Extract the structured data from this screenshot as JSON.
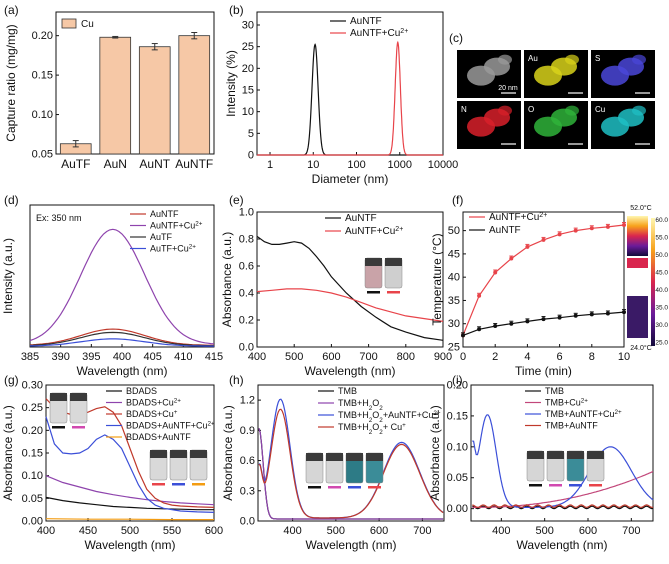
{
  "figure": {
    "chart_data": [
      {
        "panel": "(a)",
        "type": "bar",
        "title": "",
        "xlabel": "",
        "ylabel": "Capture ratio (mg/mg)",
        "categories": [
          "AuTF",
          "AuN",
          "AuNT",
          "AuNTF"
        ],
        "series": [
          {
            "name": "Cu",
            "values": [
              0.063,
              0.198,
              0.186,
              0.2
            ],
            "errors": [
              0.004,
              0.001,
              0.004,
              0.004
            ]
          }
        ],
        "ylim": [
          0.05,
          0.23
        ],
        "yticks": [
          "0.05",
          "0.10",
          "0.15",
          "0.20"
        ],
        "colors": {
          "bar": "#f6c8a6",
          "edge": "#333333"
        }
      },
      {
        "panel": "(b)",
        "type": "line",
        "title": "",
        "xlabel": "Diameter (nm)",
        "ylabel": "Intensity (%)",
        "xscale": "log",
        "xlim": [
          0.5,
          10000
        ],
        "ylim": [
          0,
          33
        ],
        "xticks": [
          "1",
          "10",
          "100",
          "1000",
          "10000"
        ],
        "yticks": [
          "0",
          "5",
          "10",
          "15",
          "20",
          "25",
          "30"
        ],
        "series": [
          {
            "name": "AuNTF",
            "color": "#111111",
            "peak_center": 11,
            "peak_height": 25.5,
            "log_width": 0.07
          },
          {
            "name": "AuNTF+Cu2+",
            "color": "#e8444a",
            "peak_center": 900,
            "peak_height": 26.0,
            "log_width": 0.06
          }
        ]
      },
      {
        "panel": "(c)",
        "type": "image-grid",
        "tiles": [
          {
            "label": "",
            "scale": "20 nm",
            "color": "#9a9a9a"
          },
          {
            "label": "Au",
            "color": "#d8d21a"
          },
          {
            "label": "S",
            "color": "#4a46d8"
          },
          {
            "label": "N",
            "color": "#d8202a"
          },
          {
            "label": "O",
            "color": "#2fb33a"
          },
          {
            "label": "Cu",
            "color": "#1fbfc4"
          }
        ]
      },
      {
        "panel": "(d)",
        "type": "line",
        "annotation": "Ex: 350 nm",
        "xlabel": "Wavelength (nm)",
        "ylabel": "Intensity (a.u.)",
        "xlim": [
          385,
          415
        ],
        "ylim": [
          0,
          175
        ],
        "xticks": [
          "385",
          "390",
          "395",
          "400",
          "405",
          "410",
          "415"
        ],
        "series": [
          {
            "name": "AuNTF",
            "color": "#c0392b",
            "peak": 22,
            "base": 2
          },
          {
            "name": "AuNTF+Cu2+",
            "color": "#8e44ad",
            "peak": 145,
            "base": 3
          },
          {
            "name": "AuTF",
            "color": "#333333",
            "peak": 18,
            "base": 1.5
          },
          {
            "name": "AuTF+Cu2+",
            "color": "#3b4fd8",
            "peak": 10,
            "base": 1
          }
        ],
        "peak_wavelength": 398.5
      },
      {
        "panel": "(e)",
        "type": "line",
        "xlabel": "Wavelength (nm)",
        "ylabel": "Absorbance (a.u.)",
        "xlim": [
          400,
          900
        ],
        "ylim": [
          0,
          1.0
        ],
        "xticks": [
          "400",
          "500",
          "600",
          "700",
          "800",
          "900"
        ],
        "yticks": [
          "0.0",
          "0.2",
          "0.4",
          "0.6",
          "0.8",
          "1.0"
        ],
        "series": [
          {
            "name": "AuNTF",
            "color": "#111111",
            "x": [
              400,
              420,
              440,
              460,
              480,
              500,
              520,
              540,
              560,
              580,
              600,
              640,
              680,
              720,
              760,
              800,
              850,
              900
            ],
            "y": [
              0.82,
              0.78,
              0.76,
              0.76,
              0.77,
              0.78,
              0.77,
              0.73,
              0.67,
              0.6,
              0.52,
              0.4,
              0.3,
              0.22,
              0.15,
              0.11,
              0.07,
              0.05
            ]
          },
          {
            "name": "AuNTF+Cu2+",
            "color": "#e8444a",
            "x": [
              400,
              440,
              480,
              520,
              560,
              600,
              640,
              680,
              720,
              760,
              800,
              850,
              900
            ],
            "y": [
              0.41,
              0.42,
              0.43,
              0.43,
              0.42,
              0.4,
              0.37,
              0.33,
              0.29,
              0.26,
              0.23,
              0.21,
              0.19
            ]
          }
        ]
      },
      {
        "panel": "(f)",
        "type": "line",
        "xlabel": "Time (min)",
        "ylabel": "Temperature (°C)",
        "xlim": [
          0,
          10
        ],
        "ylim": [
          25,
          54
        ],
        "xticks": [
          "0",
          "2",
          "4",
          "6",
          "8",
          "10"
        ],
        "yticks": [
          "25",
          "30",
          "35",
          "40",
          "45",
          "50"
        ],
        "series": [
          {
            "name": "AuNTF+Cu2+",
            "color": "#e8444a",
            "x": [
              0,
              1,
              2,
              3,
              4,
              5,
              6,
              7,
              8,
              9,
              10
            ],
            "y": [
              27.5,
              36,
              41,
              44,
              46.5,
              48,
              49.2,
              50,
              50.5,
              50.8,
              51.2
            ]
          },
          {
            "name": "AuNTF",
            "color": "#111111",
            "x": [
              0,
              1,
              2,
              3,
              4,
              5,
              6,
              7,
              8,
              9,
              10
            ],
            "y": [
              27.5,
              28.8,
              29.5,
              30,
              30.5,
              31,
              31.3,
              31.7,
              32,
              32.2,
              32.5
            ]
          }
        ],
        "thermal_images": {
          "top_label": "52.0°C",
          "bottom_label": "24.0°C",
          "colorbar_ticks": [
            "60.0",
            "55.0",
            "50.0",
            "45.0",
            "40.0",
            "35.0",
            "30.0",
            "25.0"
          ]
        }
      },
      {
        "panel": "(g)",
        "type": "line",
        "xlabel": "Wavelength (nm)",
        "ylabel": "Absorbance (a.u.)",
        "xlim": [
          400,
          600
        ],
        "ylim": [
          0,
          0.3
        ],
        "xticks": [
          "400",
          "450",
          "500",
          "550",
          "600"
        ],
        "yticks": [
          "0.00",
          "0.05",
          "0.10",
          "0.15",
          "0.20",
          "0.25",
          "0.30"
        ],
        "series": [
          {
            "name": "BDADS",
            "color": "#111111",
            "x": [
              400,
              420,
              440,
              460,
              480,
              500,
              520,
              540,
              560,
              580,
              600
            ],
            "y": [
              0.052,
              0.045,
              0.04,
              0.036,
              0.032,
              0.03,
              0.028,
              0.027,
              0.026,
              0.025,
              0.025
            ]
          },
          {
            "name": "BDADS+Cu2+",
            "color": "#8e44ad",
            "x": [
              400,
              420,
              440,
              460,
              480,
              500,
              520,
              540,
              560,
              580,
              600
            ],
            "y": [
              0.1,
              0.085,
              0.075,
              0.065,
              0.058,
              0.052,
              0.047,
              0.043,
              0.04,
              0.038,
              0.036
            ]
          },
          {
            "name": "BDADS+Cu+",
            "color": "#c0392b",
            "x": [
              400,
              410,
              420,
              430,
              440,
              450,
              460,
              470,
              480,
              490,
              500,
              510,
              520,
              530,
              540,
              550,
              560,
              580,
              600
            ],
            "y": [
              0.27,
              0.25,
              0.24,
              0.235,
              0.237,
              0.24,
              0.248,
              0.252,
              0.24,
              0.21,
              0.16,
              0.11,
              0.07,
              0.05,
              0.04,
              0.035,
              0.033,
              0.031,
              0.03
            ]
          },
          {
            "name": "BDADS+AuNTF+Cu2+",
            "color": "#3b4fd8",
            "x": [
              400,
              410,
              420,
              430,
              440,
              450,
              460,
              470,
              480,
              490,
              500,
              510,
              520,
              530,
              540,
              560,
              580,
              600
            ],
            "y": [
              0.23,
              0.17,
              0.15,
              0.148,
              0.15,
              0.16,
              0.18,
              0.19,
              0.18,
              0.16,
              0.12,
              0.08,
              0.05,
              0.035,
              0.028,
              0.022,
              0.02,
              0.019
            ]
          },
          {
            "name": "BDADS+AuNTF",
            "color": "#f39c12",
            "x": [
              400,
              450,
              500,
              550,
              600
            ],
            "y": [
              0.005,
              0.004,
              0.004,
              0.003,
              0.003
            ]
          }
        ]
      },
      {
        "panel": "(h)",
        "type": "line",
        "xlabel": "Wavelength (nm)",
        "ylabel": "Absorbance (a.u.)",
        "xlim": [
          320,
          750
        ],
        "ylim": [
          0,
          1.35
        ],
        "xticks": [
          "400",
          "500",
          "600",
          "700"
        ],
        "yticks": [
          "0.0",
          "0.3",
          "0.6",
          "0.9",
          "1.2"
        ],
        "series": [
          {
            "name": "TMB",
            "color": "#111111",
            "model": "tmb_base"
          },
          {
            "name": "TMB+H2O2",
            "color": "#8e44ad",
            "model": "tmb_base"
          },
          {
            "name": "TMB+H2O2+AuNTF+Cu2+",
            "color": "#3b4fd8",
            "model": "tmb_ox",
            "a370": 1.18,
            "a652": 0.75
          },
          {
            "name": "TMB+H2O2+ Cu+",
            "color": "#c0392b",
            "model": "tmb_ox",
            "a370": 1.08,
            "a652": 0.73
          }
        ]
      },
      {
        "panel": "(i)",
        "type": "line",
        "xlabel": "Wavelength (nm)",
        "ylabel": "Absorbance (a.u.)",
        "xlim": [
          330,
          750
        ],
        "ylim": [
          -0.02,
          0.2
        ],
        "xticks": [
          "400",
          "500",
          "600",
          "700"
        ],
        "yticks": [
          "0.00",
          "0.05",
          "0.10",
          "0.15",
          "0.20"
        ],
        "series": [
          {
            "name": "TMB",
            "color": "#111111",
            "model": "flat",
            "level": 0.002
          },
          {
            "name": "TMB+Cu2+",
            "color": "#c2477a",
            "model": "rise"
          },
          {
            "name": "TMB+AuNTF+Cu2+",
            "color": "#3b4fd8",
            "model": "tmb_ox_small"
          },
          {
            "name": "TMB+AuNTF",
            "color": "#c0392b",
            "model": "flat",
            "level": 0.004
          }
        ]
      }
    ]
  }
}
